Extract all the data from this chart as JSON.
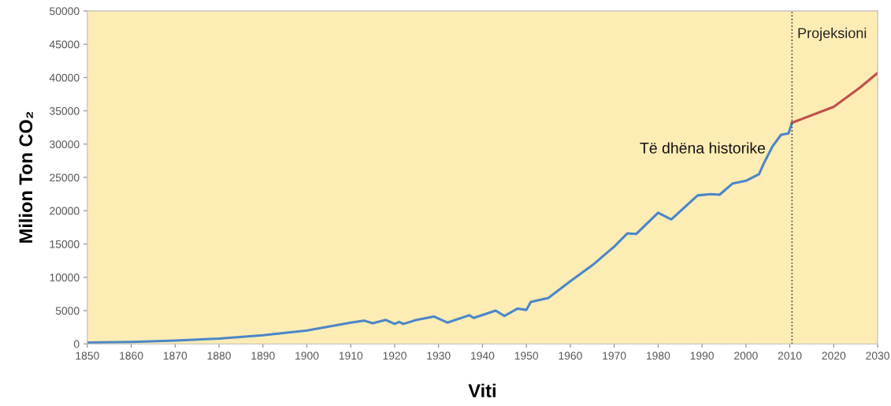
{
  "chart_data": {
    "type": "line",
    "xlabel": "Viti",
    "ylabel": "Milion Ton CO₂",
    "xlim": [
      1850,
      2030
    ],
    "xticks": [
      1850,
      1860,
      1870,
      1880,
      1890,
      1900,
      1910,
      1920,
      1930,
      1940,
      1950,
      1960,
      1970,
      1980,
      1990,
      2000,
      2010,
      2020,
      2030
    ],
    "ylim": [
      0,
      50000
    ],
    "yticks": [
      0,
      5000,
      10000,
      15000,
      20000,
      25000,
      30000,
      35000,
      40000,
      45000,
      50000
    ],
    "grid": false,
    "legend": false,
    "marker": "none",
    "line_style": "solid",
    "ref_lines": [
      {
        "axis": "x",
        "value": 2010.5,
        "color": "#404040",
        "line_style": "dotted"
      }
    ],
    "series": [
      {
        "name": "Të dhëna historike",
        "color": "#4a86c8",
        "x": [
          1850,
          1860,
          1870,
          1880,
          1890,
          1900,
          1905,
          1910,
          1913,
          1915,
          1918,
          1920,
          1921,
          1922,
          1925,
          1929,
          1932,
          1937,
          1938,
          1943,
          1945,
          1948,
          1950,
          1951,
          1955,
          1960,
          1965,
          1970,
          1973,
          1975,
          1980,
          1983,
          1989,
          1992,
          1994,
          1997,
          2000,
          2003,
          2004,
          2006,
          2008,
          2009.7,
          2010.5
        ],
        "values": [
          200,
          300,
          500,
          800,
          1300,
          2000,
          2600,
          3200,
          3500,
          3100,
          3600,
          3000,
          3300,
          3000,
          3600,
          4100,
          3200,
          4300,
          3900,
          5000,
          4200,
          5300,
          5100,
          6300,
          6900,
          9400,
          11800,
          14600,
          16600,
          16500,
          19700,
          18700,
          22300,
          22500,
          22400,
          24100,
          24500,
          25500,
          27000,
          29600,
          31400,
          31600,
          33200
        ]
      },
      {
        "name": "Projeksioni",
        "color": "#c0504d",
        "x": [
          2010.5,
          2020,
          2026,
          2030
        ],
        "values": [
          33200,
          35600,
          38500,
          40700
        ]
      }
    ]
  }
}
